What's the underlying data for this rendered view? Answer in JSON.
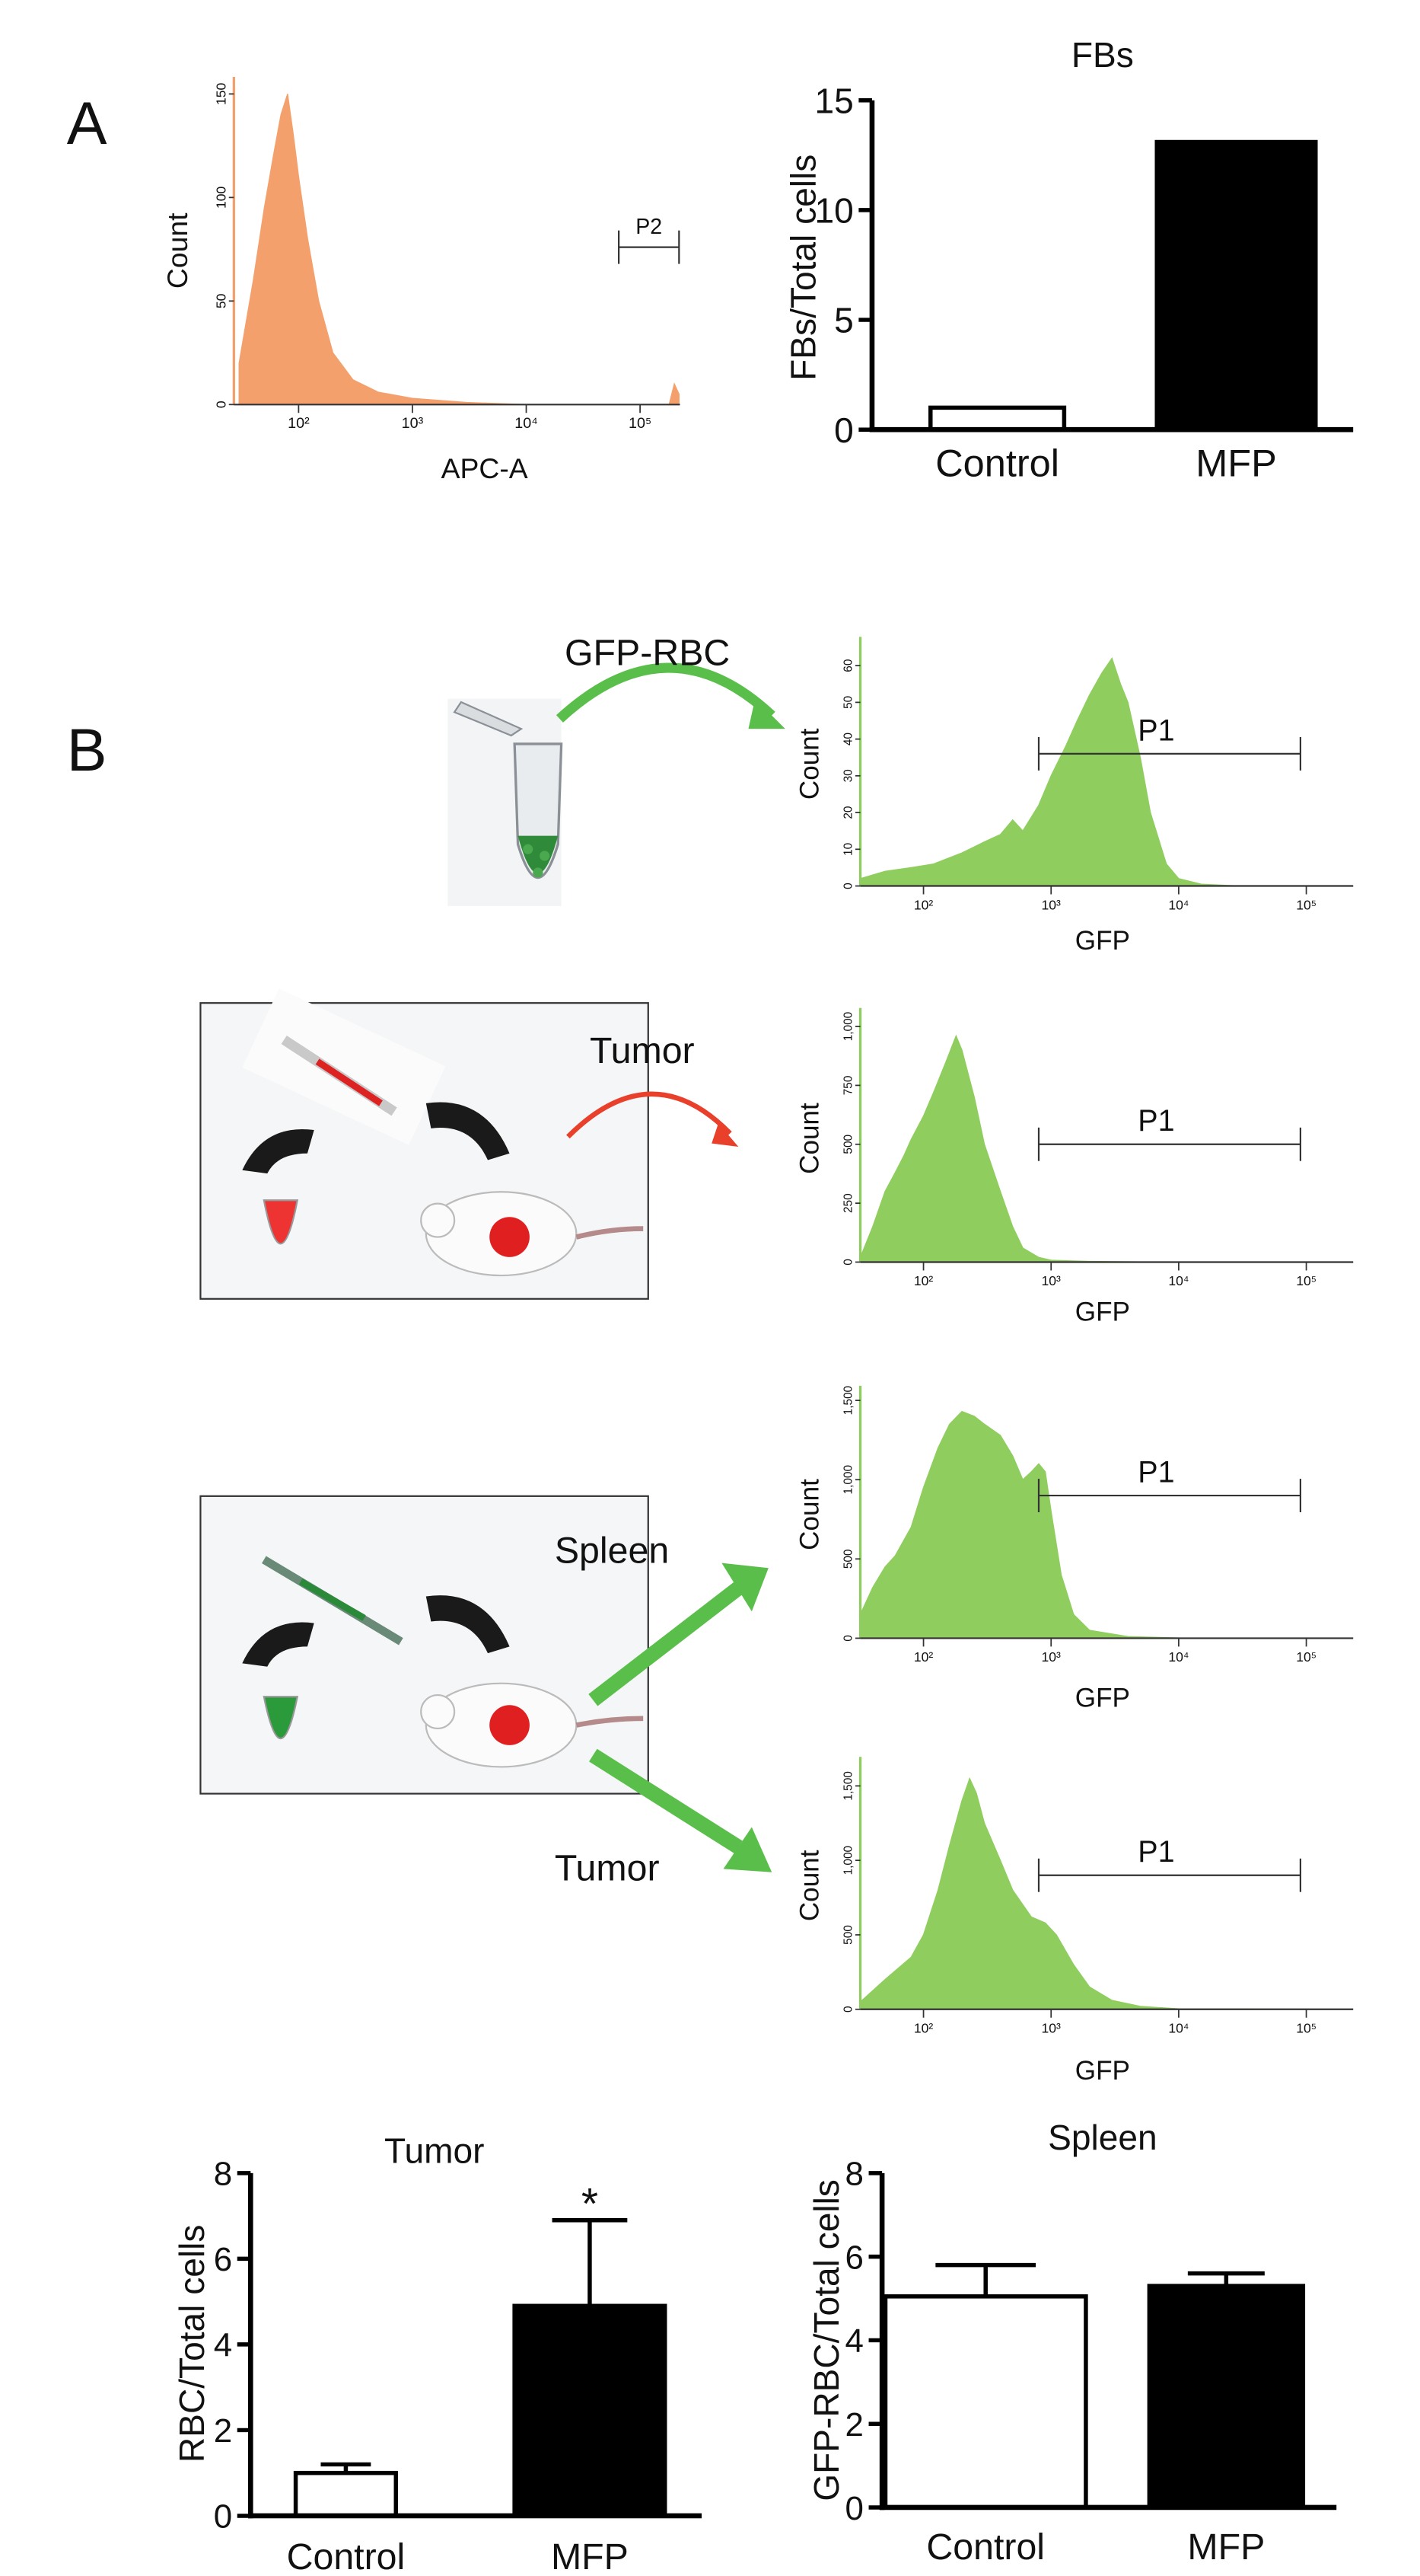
{
  "figure": {
    "panels": [
      "A",
      "B"
    ],
    "annotations": [
      "GFP-RBC",
      "Tumor",
      "Spleen",
      "Tumor"
    ]
  },
  "chart_data": [
    {
      "type": "area",
      "xlabel": "APC-A",
      "ylabel": "Count",
      "color": "#f4a06c",
      "xlog": true,
      "x": [
        30,
        40,
        50,
        60,
        70,
        80,
        90,
        100,
        120,
        150,
        200,
        300,
        500,
        1000,
        3000,
        10000,
        100000,
        180000,
        200000,
        220000
      ],
      "values": [
        20,
        60,
        95,
        120,
        140,
        150,
        130,
        110,
        80,
        50,
        25,
        12,
        6,
        3,
        1,
        0,
        0,
        0,
        10,
        5
      ],
      "xlim": [
        27,
        224000
      ],
      "ylim": [
        0,
        155
      ],
      "xticks": [
        {
          "value": 100,
          "label": "10²"
        },
        {
          "value": 1000,
          "label": "10³"
        },
        {
          "value": 10000,
          "label": "10⁴"
        },
        {
          "value": 100000,
          "label": "10⁵"
        }
      ],
      "yticks": [
        0,
        50,
        100,
        150
      ],
      "gate": {
        "label": "P2",
        "range": [
          65000,
          220000
        ],
        "y": 76
      }
    },
    {
      "type": "bar",
      "title": "FBs",
      "ylabel": "FBs/Total cells",
      "categories": [
        "Control",
        "MFP"
      ],
      "values": [
        1,
        13.1
      ],
      "colors": [
        "#ffffff",
        "#000000"
      ],
      "ylim": [
        0,
        15
      ],
      "yticks": [
        0,
        5,
        10,
        15
      ]
    },
    {
      "type": "area",
      "xlabel": "GFP",
      "ylabel": "Count",
      "color": "#8fce5e",
      "xlog": true,
      "x": [
        32,
        50,
        80,
        120,
        200,
        300,
        400,
        500,
        600,
        800,
        1000,
        1300,
        1600,
        2000,
        2500,
        3000,
        3500,
        4000,
        5000,
        6000,
        8000,
        10000,
        15000,
        30000,
        233000
      ],
      "values": [
        2,
        4,
        5,
        6,
        9,
        12,
        14,
        18,
        15,
        22,
        30,
        38,
        45,
        52,
        58,
        62,
        55,
        50,
        35,
        20,
        6,
        2,
        0.5,
        0,
        0
      ],
      "xlim": [
        32,
        233000
      ],
      "ylim": [
        0,
        66
      ],
      "xticks": [
        {
          "value": 100,
          "label": "10²"
        },
        {
          "value": 1000,
          "label": "10³"
        },
        {
          "value": 10000,
          "label": "10⁴"
        },
        {
          "value": 100000,
          "label": "10⁵"
        }
      ],
      "yticks": [
        0,
        10,
        20,
        30,
        40,
        50,
        60
      ],
      "gate": {
        "label": "P1",
        "range": [
          800,
          90000
        ],
        "y": 36
      }
    },
    {
      "type": "area",
      "xlabel": "GFP",
      "ylabel": "Count",
      "color": "#8fce5e",
      "xlog": true,
      "x": [
        32,
        40,
        50,
        60,
        70,
        80,
        100,
        120,
        150,
        180,
        200,
        250,
        300,
        400,
        500,
        600,
        800,
        1000,
        2000,
        5000,
        233000
      ],
      "values": [
        20,
        150,
        300,
        380,
        450,
        520,
        620,
        720,
        850,
        960,
        900,
        700,
        500,
        300,
        150,
        60,
        20,
        8,
        3,
        1,
        0
      ],
      "xlim": [
        32,
        233000
      ],
      "ylim": [
        0,
        1050
      ],
      "xticks": [
        {
          "value": 100,
          "label": "10²"
        },
        {
          "value": 1000,
          "label": "10³"
        },
        {
          "value": 10000,
          "label": "10⁴"
        },
        {
          "value": 100000,
          "label": "10⁵"
        }
      ],
      "yticks": [
        0,
        250,
        500,
        750,
        {
          "value": 1000,
          "label": "1,000"
        }
      ],
      "gate": {
        "label": "P1",
        "range": [
          800,
          90000
        ],
        "y": 500
      }
    },
    {
      "type": "area",
      "xlabel": "GFP",
      "ylabel": "Count",
      "color": "#8fce5e",
      "xlog": true,
      "x": [
        32,
        40,
        50,
        60,
        80,
        100,
        130,
        160,
        200,
        250,
        300,
        400,
        500,
        600,
        700,
        800,
        900,
        1000,
        1200,
        1500,
        2000,
        4000,
        10000,
        233000
      ],
      "values": [
        150,
        320,
        450,
        520,
        700,
        950,
        1200,
        1350,
        1430,
        1400,
        1350,
        1280,
        1150,
        1000,
        1050,
        1100,
        1050,
        800,
        400,
        150,
        50,
        10,
        2,
        0
      ],
      "xlim": [
        32,
        233000
      ],
      "ylim": [
        0,
        1550
      ],
      "xticks": [
        {
          "value": 100,
          "label": "10²"
        },
        {
          "value": 1000,
          "label": "10³"
        },
        {
          "value": 10000,
          "label": "10⁴"
        },
        {
          "value": 100000,
          "label": "10⁵"
        }
      ],
      "yticks": [
        0,
        500,
        {
          "value": 1000,
          "label": "1,000"
        },
        {
          "value": 1500,
          "label": "1,500"
        }
      ],
      "gate": {
        "label": "P1",
        "range": [
          800,
          90000
        ],
        "y": 900
      }
    },
    {
      "type": "area",
      "xlabel": "GFP",
      "ylabel": "Count",
      "color": "#8fce5e",
      "xlog": true,
      "x": [
        32,
        50,
        80,
        100,
        130,
        160,
        200,
        230,
        260,
        300,
        400,
        500,
        700,
        900,
        1100,
        1500,
        2000,
        3000,
        5000,
        10000,
        233000
      ],
      "values": [
        50,
        200,
        350,
        500,
        800,
        1100,
        1400,
        1550,
        1450,
        1250,
        1000,
        800,
        620,
        580,
        500,
        300,
        150,
        60,
        20,
        3,
        0
      ],
      "xlim": [
        32,
        233000
      ],
      "ylim": [
        0,
        1650
      ],
      "xticks": [
        {
          "value": 100,
          "label": "10²"
        },
        {
          "value": 1000,
          "label": "10³"
        },
        {
          "value": 10000,
          "label": "10⁴"
        },
        {
          "value": 100000,
          "label": "10⁵"
        }
      ],
      "yticks": [
        0,
        500,
        {
          "value": 1000,
          "label": "1,000"
        },
        {
          "value": 1500,
          "label": "1,500"
        }
      ],
      "gate": {
        "label": "P1",
        "range": [
          800,
          90000
        ],
        "y": 900
      }
    },
    {
      "type": "bar",
      "title": "Tumor",
      "ylabel": "RBC/Total cells",
      "categories": [
        "Control",
        "MFP"
      ],
      "values": [
        1.0,
        4.9
      ],
      "errors": [
        0.2,
        2.0
      ],
      "colors": [
        "#ffffff",
        "#000000"
      ],
      "ylim": [
        0,
        8
      ],
      "yticks": [
        0,
        2,
        4,
        6,
        8
      ],
      "annotation": "*"
    },
    {
      "type": "bar",
      "title": "Spleen",
      "ylabel": "GFP-RBC/Total cells",
      "categories": [
        "Control",
        "MFP"
      ],
      "values": [
        5.05,
        5.3
      ],
      "errors": [
        0.75,
        0.3
      ],
      "colors": [
        "#ffffff",
        "#000000"
      ],
      "ylim": [
        0,
        8
      ],
      "yticks": [
        0,
        2,
        4,
        6,
        8
      ]
    }
  ]
}
